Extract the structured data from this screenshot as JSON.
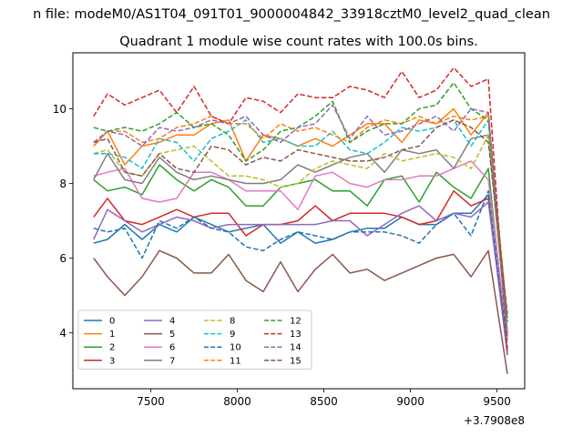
{
  "chart_data": {
    "type": "line",
    "suptitle": "n file: modeM0/AS1T04_091T01_9000004842_33918cztM0_level2_quad_clean",
    "title": "Quadrant 1 module wise count rates with 100.0s bins.",
    "xlabel": "",
    "ylabel": "",
    "x_offset_label": "+3.7908e8",
    "xlim": [
      7050,
      9660
    ],
    "ylim": [
      2.5,
      11.5
    ],
    "x_ticks": [
      7500,
      8000,
      8500,
      9000,
      9500
    ],
    "x_tick_labels": [
      "7500",
      "8000",
      "8500",
      "9000",
      "9500"
    ],
    "y_ticks": [
      4,
      6,
      8,
      10
    ],
    "y_tick_labels": [
      "4",
      "6",
      "8",
      "10"
    ],
    "grid": false,
    "legend_position": "lower-left",
    "legend_columns": 4,
    "x": [
      7170,
      7250,
      7350,
      7450,
      7550,
      7650,
      7750,
      7850,
      7950,
      8050,
      8150,
      8250,
      8350,
      8450,
      8550,
      8650,
      8750,
      8850,
      8950,
      9050,
      9150,
      9250,
      9350,
      9450,
      9560
    ],
    "series": [
      {
        "name": "0",
        "color": "#1f77b4",
        "dash": "solid",
        "values": [
          6.4,
          6.5,
          6.9,
          6.5,
          6.9,
          6.7,
          7.1,
          6.9,
          6.7,
          6.8,
          6.9,
          6.4,
          6.7,
          6.4,
          6.5,
          6.7,
          6.8,
          6.8,
          7.1,
          6.9,
          6.9,
          7.2,
          7.2,
          7.7,
          3.4
        ]
      },
      {
        "name": "1",
        "color": "#ff7f0e",
        "dash": "solid",
        "values": [
          9.0,
          9.4,
          8.5,
          9.0,
          9.1,
          9.3,
          9.3,
          9.6,
          9.7,
          8.6,
          9.3,
          9.2,
          9.0,
          9.2,
          9.0,
          9.3,
          9.6,
          9.6,
          9.1,
          9.7,
          9.6,
          10.0,
          9.3,
          9.9,
          4.0
        ]
      },
      {
        "name": "2",
        "color": "#2ca02c",
        "dash": "solid",
        "values": [
          8.1,
          7.8,
          7.9,
          7.7,
          8.5,
          8.1,
          7.8,
          8.1,
          7.9,
          7.4,
          7.4,
          7.9,
          8.0,
          8.1,
          7.8,
          7.8,
          7.4,
          8.1,
          8.2,
          7.5,
          8.3,
          7.9,
          7.6,
          8.4,
          3.5
        ]
      },
      {
        "name": "3",
        "color": "#d62728",
        "dash": "solid",
        "values": [
          7.1,
          7.6,
          7.0,
          6.9,
          7.1,
          7.3,
          7.1,
          7.2,
          7.2,
          6.6,
          6.9,
          6.9,
          7.0,
          7.4,
          7.0,
          7.2,
          7.2,
          7.2,
          7.1,
          6.9,
          7.0,
          7.8,
          7.4,
          7.6,
          3.5
        ]
      },
      {
        "name": "4",
        "color": "#9467bd",
        "dash": "solid",
        "values": [
          6.5,
          7.3,
          7.0,
          6.7,
          6.9,
          7.1,
          7.0,
          6.8,
          6.9,
          6.9,
          6.9,
          6.9,
          6.9,
          6.9,
          7.0,
          7.0,
          6.6,
          6.9,
          7.2,
          7.4,
          7.0,
          7.2,
          7.1,
          7.5,
          3.5
        ]
      },
      {
        "name": "5",
        "color": "#8c564b",
        "dash": "solid",
        "values": [
          6.0,
          5.5,
          5.0,
          5.5,
          6.2,
          6.0,
          5.6,
          5.6,
          6.1,
          5.4,
          5.1,
          5.9,
          5.1,
          5.7,
          6.1,
          5.6,
          5.7,
          5.4,
          5.6,
          5.8,
          6.0,
          6.1,
          5.5,
          6.2,
          2.9
        ]
      },
      {
        "name": "6",
        "color": "#e377c2",
        "dash": "solid",
        "values": [
          8.2,
          8.3,
          8.4,
          7.6,
          7.5,
          7.6,
          8.3,
          8.3,
          8.1,
          7.8,
          7.8,
          7.8,
          7.3,
          8.2,
          8.3,
          8.0,
          7.9,
          8.1,
          8.1,
          8.2,
          8.2,
          8.4,
          8.6,
          8.1,
          3.8
        ]
      },
      {
        "name": "7",
        "color": "#7f7f7f",
        "dash": "solid",
        "values": [
          8.1,
          8.8,
          8.1,
          8.0,
          8.7,
          8.3,
          8.1,
          8.2,
          8.1,
          8.0,
          8.0,
          8.1,
          8.5,
          8.3,
          8.5,
          8.7,
          8.8,
          8.3,
          8.9,
          8.8,
          8.9,
          8.4,
          9.2,
          9.3,
          3.9
        ]
      },
      {
        "name": "8",
        "color": "#bcbd22",
        "dash": "dashed",
        "values": [
          8.8,
          8.9,
          8.3,
          8.2,
          8.8,
          8.9,
          9.0,
          8.6,
          8.2,
          8.2,
          8.1,
          7.9,
          8.0,
          8.4,
          8.6,
          8.5,
          8.4,
          8.8,
          8.6,
          8.7,
          8.8,
          8.7,
          8.4,
          9.3,
          4.1
        ]
      },
      {
        "name": "9",
        "color": "#17becf",
        "dash": "dashed",
        "values": [
          8.8,
          8.8,
          8.7,
          8.4,
          9.2,
          9.1,
          8.6,
          9.2,
          9.4,
          9.7,
          9.1,
          9.2,
          9.0,
          9.0,
          9.4,
          8.9,
          8.8,
          9.1,
          9.5,
          9.4,
          9.5,
          9.7,
          9.0,
          9.7,
          4.2
        ]
      },
      {
        "name": "10",
        "color": "#1f77b4",
        "dash": "dashed",
        "values": [
          6.8,
          6.7,
          6.8,
          6.0,
          7.0,
          6.8,
          7.1,
          6.8,
          6.7,
          6.3,
          6.2,
          6.5,
          6.7,
          6.6,
          6.5,
          6.7,
          6.7,
          6.7,
          6.6,
          6.4,
          6.9,
          7.2,
          6.6,
          7.8,
          3.6
        ]
      },
      {
        "name": "11",
        "color": "#ff7f0e",
        "dash": "dashed",
        "values": [
          9.0,
          9.4,
          9.4,
          9.1,
          9.2,
          9.5,
          9.6,
          9.8,
          9.6,
          9.6,
          9.2,
          9.6,
          9.4,
          9.5,
          9.3,
          9.1,
          9.5,
          9.7,
          9.6,
          9.8,
          9.6,
          9.8,
          9.7,
          9.8,
          4.4
        ]
      },
      {
        "name": "12",
        "color": "#2ca02c",
        "dash": "dashed",
        "values": [
          9.5,
          9.4,
          9.5,
          9.4,
          9.6,
          9.9,
          9.5,
          9.6,
          9.3,
          8.6,
          8.9,
          9.4,
          9.5,
          9.8,
          10.2,
          9.1,
          9.4,
          9.6,
          9.6,
          10.0,
          10.1,
          10.7,
          10.0,
          9.7,
          4.3
        ]
      },
      {
        "name": "13",
        "color": "#d62728",
        "dash": "dashed",
        "values": [
          9.8,
          10.4,
          10.1,
          10.3,
          10.5,
          9.9,
          10.6,
          9.8,
          9.6,
          10.3,
          10.2,
          9.9,
          10.4,
          10.3,
          10.3,
          10.6,
          10.5,
          10.3,
          11.0,
          10.3,
          10.5,
          11.1,
          10.6,
          10.8,
          3.5
        ]
      },
      {
        "name": "14",
        "color": "#9467bd",
        "dash": "dashed",
        "values": [
          9.1,
          9.4,
          9.3,
          9.0,
          9.5,
          9.4,
          9.5,
          9.7,
          9.6,
          9.8,
          9.3,
          9.1,
          9.5,
          9.6,
          10.1,
          9.2,
          9.8,
          9.3,
          9.4,
          9.6,
          9.8,
          9.4,
          10.0,
          9.9,
          3.9
        ]
      },
      {
        "name": "15",
        "color": "#8c564b",
        "dash": "dashed",
        "values": [
          9.1,
          9.2,
          8.3,
          8.2,
          8.8,
          8.4,
          8.3,
          9.0,
          8.9,
          8.5,
          8.7,
          8.6,
          8.9,
          8.8,
          8.7,
          8.6,
          8.6,
          8.7,
          8.9,
          9.0,
          9.5,
          9.7,
          9.5,
          9.1,
          4.5
        ]
      }
    ]
  }
}
